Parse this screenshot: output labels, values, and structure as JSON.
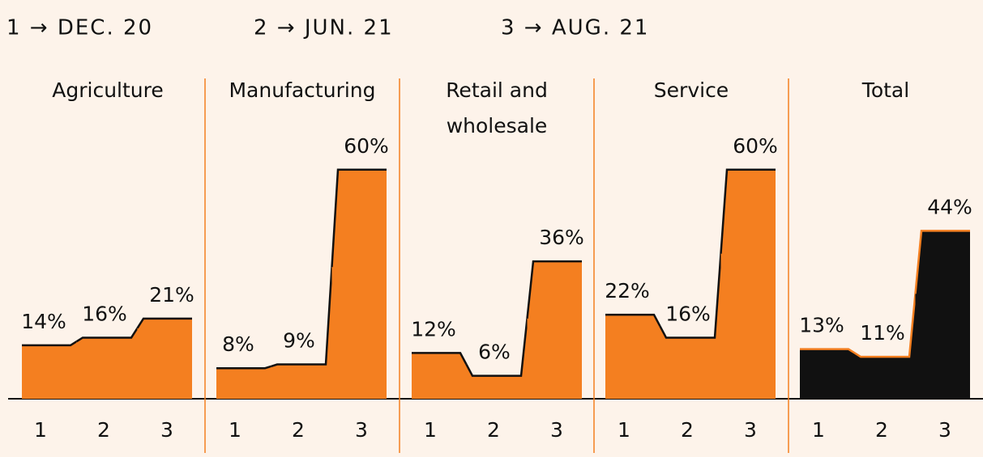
{
  "legend": [
    "1 → DEC. 20",
    "2 → JUN. 21",
    "3 → AUG. 21"
  ],
  "chart_data": [
    {
      "type": "area",
      "title": "Agriculture",
      "categories": [
        "1",
        "2",
        "3"
      ],
      "values": [
        14,
        16,
        21
      ],
      "value_labels": [
        "14%",
        "16%",
        "21%"
      ],
      "color": "#f47f20",
      "line_color": "#111111",
      "title_color": "#111111"
    },
    {
      "type": "area",
      "title": "Manufacturing",
      "categories": [
        "1",
        "2",
        "3"
      ],
      "values": [
        8,
        9,
        60
      ],
      "value_labels": [
        "8%",
        "9%",
        "60%"
      ],
      "color": "#f47f20",
      "line_color": "#111111",
      "title_color": "#111111"
    },
    {
      "type": "area",
      "title": "Retail and wholesale",
      "categories": [
        "1",
        "2",
        "3"
      ],
      "values": [
        12,
        6,
        36
      ],
      "value_labels": [
        "12%",
        "6%",
        "36%"
      ],
      "color": "#f47f20",
      "line_color": "#111111",
      "title_color": "#111111"
    },
    {
      "type": "area",
      "title": "Service",
      "categories": [
        "1",
        "2",
        "3"
      ],
      "values": [
        22,
        16,
        60
      ],
      "value_labels": [
        "22%",
        "16%",
        "60%"
      ],
      "color": "#f47f20",
      "line_color": "#111111",
      "title_color": "#111111"
    },
    {
      "type": "area",
      "title": "Total",
      "categories": [
        "1",
        "2",
        "3"
      ],
      "values": [
        13,
        11,
        44
      ],
      "value_labels": [
        "13%",
        "11%",
        "44%"
      ],
      "color": "#111111",
      "line_color": "#f47f20",
      "title_color": "#f47f20"
    }
  ]
}
